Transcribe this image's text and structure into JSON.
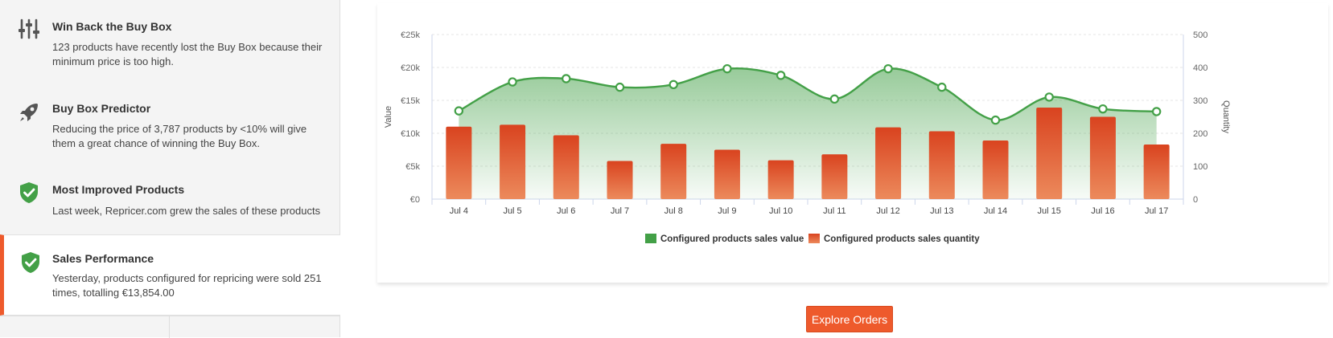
{
  "sidebar": {
    "items": [
      {
        "icon": "sliders-icon",
        "title": "Win Back the Buy Box",
        "description": "123 products have recently lost the Buy Box because their minimum price is too high."
      },
      {
        "icon": "rocket-icon",
        "title": "Buy Box Predictor",
        "description": "Reducing the price of 3,787 products by <10% will give them a great chance of winning the Buy Box."
      },
      {
        "icon": "shield-check-icon",
        "title": "Most Improved Products",
        "description": "Last week, Repricer.com grew the sales of these products"
      },
      {
        "icon": "shield-check-icon",
        "title": "Sales Performance",
        "description": "Yesterday, products configured for repricing were sold 251 times, totalling €13,854.00",
        "active": true
      }
    ]
  },
  "explore_button": {
    "label": "Explore Orders"
  },
  "colors": {
    "accent": "#ee5a2c",
    "green": "#43a047",
    "icon_gray": "#555555"
  },
  "chart_data": {
    "type": "bar+area",
    "categories": [
      "Jul 4",
      "Jul 5",
      "Jul 6",
      "Jul 7",
      "Jul 8",
      "Jul 9",
      "Jul 10",
      "Jul 11",
      "Jul 12",
      "Jul 13",
      "Jul 14",
      "Jul 15",
      "Jul 16",
      "Jul 17"
    ],
    "y_left": {
      "label": "Value",
      "ticks": [
        "€0",
        "€5k",
        "€10k",
        "€15k",
        "€20k",
        "€25k"
      ],
      "lim": [
        0,
        25000
      ]
    },
    "y_right": {
      "label": "Quantity",
      "ticks": [
        "0",
        "100",
        "200",
        "300",
        "400",
        "500"
      ],
      "lim": [
        0,
        500
      ]
    },
    "series": [
      {
        "name": "Configured products sales value",
        "type": "area",
        "axis": "left",
        "color": "#43a047",
        "values": [
          13400,
          17800,
          18300,
          17000,
          17400,
          19800,
          18800,
          15200,
          19800,
          17000,
          12000,
          15500,
          13700,
          13300
        ]
      },
      {
        "name": "Configured products sales quantity",
        "type": "bar",
        "axis": "right",
        "color": "#e8542a",
        "values": [
          220,
          226,
          194,
          116,
          168,
          150,
          118,
          136,
          218,
          206,
          178,
          278,
          250,
          166
        ]
      }
    ],
    "legend": "bottom-center",
    "grid": true
  }
}
